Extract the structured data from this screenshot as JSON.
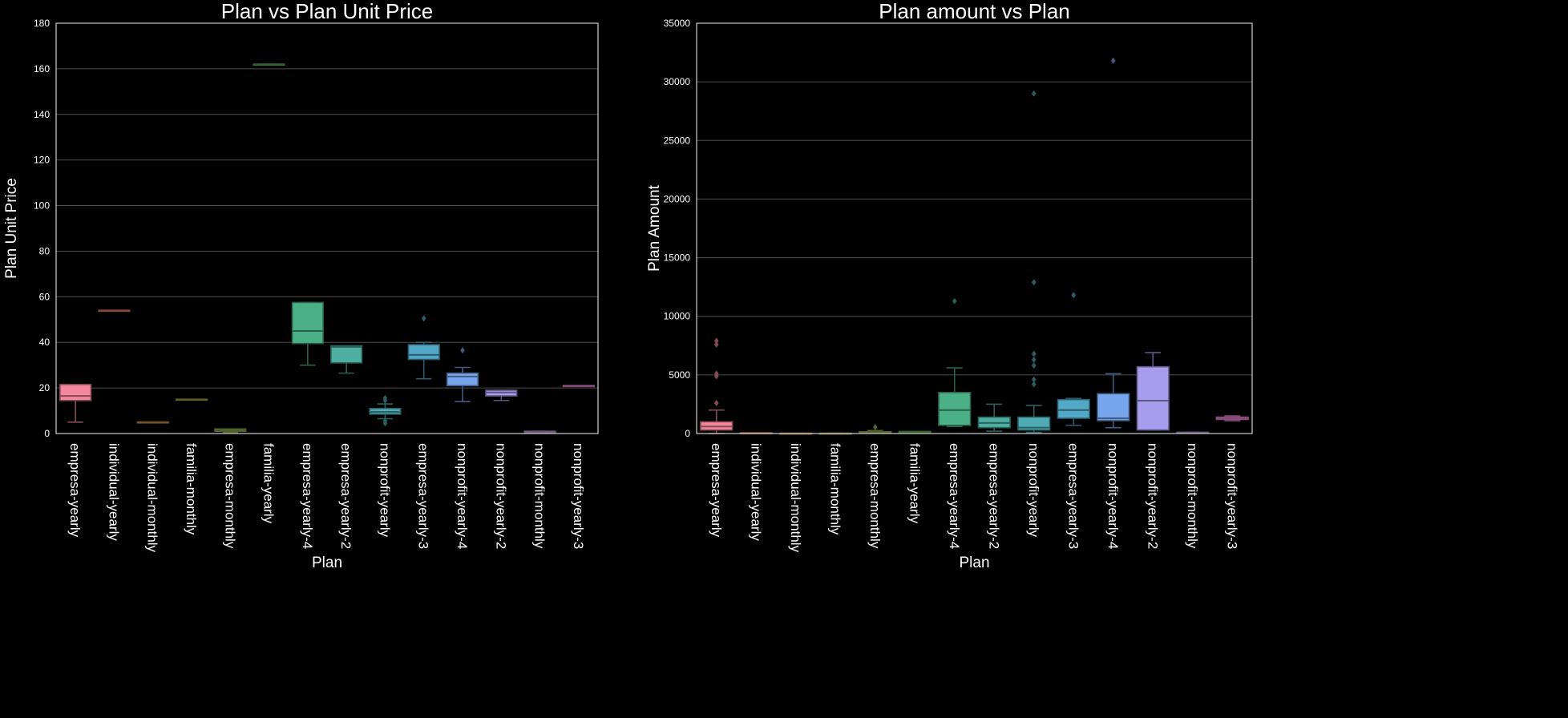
{
  "chart_data": [
    {
      "type": "box",
      "title": "Plan vs Plan Unit Price",
      "xlabel": "Plan",
      "ylabel": "Plan Unit Price",
      "ylim": [
        0,
        180
      ],
      "yticks": [
        0,
        20,
        40,
        60,
        80,
        100,
        120,
        140,
        160,
        180
      ],
      "grid": true,
      "categories": [
        "empresa-yearly",
        "individual-yearly",
        "individual-monthly",
        "familia-monthly",
        "empresa-monthly",
        "familia-yearly",
        "empresa-yearly-4",
        "empresa-yearly-2",
        "nonprofit-yearly",
        "empresa-yearly-3",
        "nonprofit-yearly-4",
        "nonprofit-yearly-2",
        "nonprofit-monthly",
        "nonprofit-yearly-3"
      ],
      "boxes": [
        {
          "whislo": 5,
          "q1": 14.5,
          "med": 16.5,
          "q3": 21.5,
          "whishi": 21.5,
          "fliers": []
        },
        {
          "whislo": 54,
          "q1": 54,
          "med": 54,
          "q3": 54,
          "whishi": 54,
          "fliers": []
        },
        {
          "whislo": 5,
          "q1": 5,
          "med": 5,
          "q3": 5,
          "whishi": 5,
          "fliers": []
        },
        {
          "whislo": 15,
          "q1": 15,
          "med": 15,
          "q3": 15,
          "whishi": 15,
          "fliers": []
        },
        {
          "whislo": 0.5,
          "q1": 1,
          "med": 1.5,
          "q3": 2,
          "whishi": 2,
          "fliers": []
        },
        {
          "whislo": 162,
          "q1": 162,
          "med": 162,
          "q3": 162,
          "whishi": 162,
          "fliers": []
        },
        {
          "whislo": 30,
          "q1": 39.5,
          "med": 45,
          "q3": 57.5,
          "whishi": 57.5,
          "fliers": []
        },
        {
          "whislo": 26.5,
          "q1": 31,
          "med": 38,
          "q3": 38.5,
          "whishi": 38.5,
          "fliers": []
        },
        {
          "whislo": 6.5,
          "q1": 8.5,
          "med": 9.5,
          "q3": 11,
          "whishi": 13,
          "fliers": [
            4.5,
            5.5,
            14.5,
            15.5
          ]
        },
        {
          "whislo": 24,
          "q1": 32.5,
          "med": 34.5,
          "q3": 39,
          "whishi": 40,
          "fliers": [
            50.5
          ]
        },
        {
          "whislo": 14,
          "q1": 21,
          "med": 25,
          "q3": 26.5,
          "whishi": 29,
          "fliers": [
            36.5
          ]
        },
        {
          "whislo": 14.5,
          "q1": 16.5,
          "med": 18,
          "q3": 19,
          "whishi": 19,
          "fliers": []
        },
        {
          "whislo": 0.5,
          "q1": 0.5,
          "med": 0.5,
          "q3": 1,
          "whishi": 1,
          "fliers": []
        },
        {
          "whislo": 21,
          "q1": 21,
          "med": 21,
          "q3": 21,
          "whishi": 21,
          "fliers": []
        }
      ]
    },
    {
      "type": "box",
      "title": "Plan amount vs Plan",
      "xlabel": "Plan",
      "ylabel": "Plan Amount",
      "ylim": [
        0,
        35000
      ],
      "yticks": [
        0,
        5000,
        10000,
        15000,
        20000,
        25000,
        30000,
        35000
      ],
      "grid": true,
      "categories": [
        "empresa-yearly",
        "individual-yearly",
        "individual-monthly",
        "familia-monthly",
        "empresa-monthly",
        "familia-yearly",
        "empresa-yearly-4",
        "empresa-yearly-2",
        "nonprofit-yearly",
        "empresa-yearly-3",
        "nonprofit-yearly-4",
        "nonprofit-yearly-2",
        "nonprofit-monthly",
        "nonprofit-yearly-3"
      ],
      "boxes": [
        {
          "whislo": 0,
          "q1": 300,
          "med": 600,
          "q3": 1000,
          "whishi": 2000,
          "fliers": [
            2600,
            4900,
            5100,
            7600,
            7900
          ]
        },
        {
          "whislo": 50,
          "q1": 50,
          "med": 50,
          "q3": 50,
          "whishi": 50,
          "fliers": []
        },
        {
          "whislo": 20,
          "q1": 20,
          "med": 20,
          "q3": 20,
          "whishi": 20,
          "fliers": []
        },
        {
          "whislo": 20,
          "q1": 20,
          "med": 20,
          "q3": 20,
          "whishi": 20,
          "fliers": []
        },
        {
          "whislo": 20,
          "q1": 60,
          "med": 100,
          "q3": 150,
          "whishi": 250,
          "fliers": [
            550
          ]
        },
        {
          "whislo": 160,
          "q1": 160,
          "med": 160,
          "q3": 160,
          "whishi": 160,
          "fliers": []
        },
        {
          "whislo": 600,
          "q1": 700,
          "med": 2000,
          "q3": 3500,
          "whishi": 5600,
          "fliers": [
            11300
          ]
        },
        {
          "whislo": 200,
          "q1": 500,
          "med": 900,
          "q3": 1400,
          "whishi": 2500,
          "fliers": []
        },
        {
          "whislo": 100,
          "q1": 300,
          "med": 500,
          "q3": 1400,
          "whishi": 2400,
          "fliers": [
            4200,
            4600,
            5800,
            6300,
            6800,
            12900,
            29000
          ]
        },
        {
          "whislo": 700,
          "q1": 1300,
          "med": 2000,
          "q3": 2900,
          "whishi": 3000,
          "fliers": [
            11800
          ]
        },
        {
          "whislo": 500,
          "q1": 1100,
          "med": 1300,
          "q3": 3400,
          "whishi": 5100,
          "fliers": [
            31800
          ]
        },
        {
          "whislo": 300,
          "q1": 300,
          "med": 2800,
          "q3": 5700,
          "whishi": 6900,
          "fliers": []
        },
        {
          "whislo": 50,
          "q1": 50,
          "med": 80,
          "q3": 100,
          "whishi": 100,
          "fliers": []
        },
        {
          "whislo": 1100,
          "q1": 1200,
          "med": 1300,
          "q3": 1400,
          "whishi": 1500,
          "fliers": []
        }
      ]
    }
  ],
  "palette": [
    "#f4879c",
    "#f1896d",
    "#d99a4e",
    "#b3a64d",
    "#95ae4a",
    "#5ab54b",
    "#4cb087",
    "#4eaea2",
    "#4facb4",
    "#52a8c7",
    "#76a5ec",
    "#a89ced",
    "#cc96e9",
    "#f388da"
  ],
  "style": {
    "background": "#000000",
    "grid_color": "#4d4d4d",
    "text_color": "#ffffff",
    "line_color": "#4a4a4a"
  }
}
